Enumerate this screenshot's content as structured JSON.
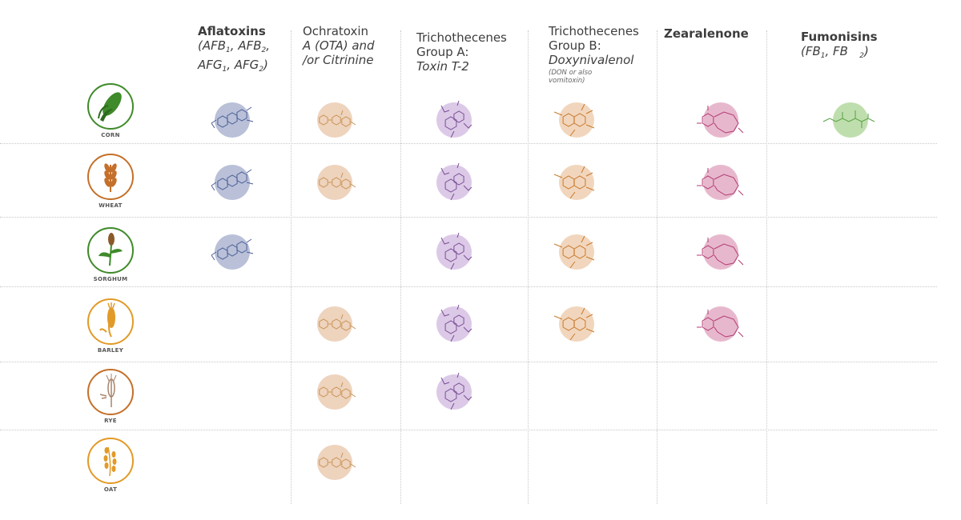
{
  "toxins": {
    "aflatoxins": {
      "title": "Aflatoxins",
      "s1": "(AFB",
      "s1b": "1",
      "s2": ", AFB",
      "s2b": "2",
      "s3": ",",
      "s4": "AFG",
      "s4b": "1",
      "s5": ", AFG",
      "s5b": "2",
      "s6": ")"
    },
    "ochratoxin": {
      "line1": "Ochratoxin",
      "line2": "A (OTA) and",
      "line3": "/or Citrinine"
    },
    "trichoA": {
      "line1": "Trichothecenes",
      "line2": "Group A:",
      "line3": "Toxin T-2"
    },
    "trichoB": {
      "line1": "Trichothecenes",
      "line2": "Group B:",
      "line3": "Doxynivalenol",
      "note1": "(DON or also",
      "note2": "vomitoxin)"
    },
    "zearalenone": {
      "title": "Zearalenone"
    },
    "fumonisins": {
      "title": "Fumonisins",
      "s1": "(FB",
      "s1b": "1",
      "s2": ", FB",
      "s2b": "2",
      "s3": ")"
    }
  },
  "crops": [
    {
      "name": "CORN",
      "color": "#3f8a2a",
      "icon": "corn-icon"
    },
    {
      "name": "WHEAT",
      "color": "#c4702a",
      "icon": "wheat-icon"
    },
    {
      "name": "SORGHUM",
      "color": "#3f8a2a",
      "icon": "sorghum-icon"
    },
    {
      "name": "BARLEY",
      "color": "#e29a28",
      "icon": "barley-icon"
    },
    {
      "name": "RYE",
      "color": "#c4702a",
      "icon": "rye-icon"
    },
    {
      "name": "OAT",
      "color": "#e29a28",
      "icon": "oat-icon"
    }
  ],
  "molecule_colors": {
    "aflatoxins": {
      "fill": "#b9c0d8",
      "stroke": "#4a5f96"
    },
    "ochratoxin": {
      "fill": "#eed3bd",
      "stroke": "#c99356"
    },
    "trichoA": {
      "fill": "#dcc9e7",
      "stroke": "#7a4e96"
    },
    "trichoB": {
      "fill": "#f1d6bd",
      "stroke": "#c9782c"
    },
    "zearalenone": {
      "fill": "#e7b8cd",
      "stroke": "#b23b74"
    },
    "fumonisins": {
      "fill": "#bfdeae",
      "stroke": "#56a040"
    }
  },
  "presence": {
    "CORN": [
      "aflatoxins",
      "ochratoxin",
      "trichoA",
      "trichoB",
      "zearalenone",
      "fumonisins"
    ],
    "WHEAT": [
      "aflatoxins",
      "ochratoxin",
      "trichoA",
      "trichoB",
      "zearalenone"
    ],
    "SORGHUM": [
      "aflatoxins",
      "trichoA",
      "trichoB",
      "zearalenone"
    ],
    "BARLEY": [
      "ochratoxin",
      "trichoA",
      "trichoB",
      "zearalenone"
    ],
    "RYE": [
      "ochratoxin",
      "trichoA"
    ],
    "OAT": [
      "ochratoxin"
    ]
  }
}
